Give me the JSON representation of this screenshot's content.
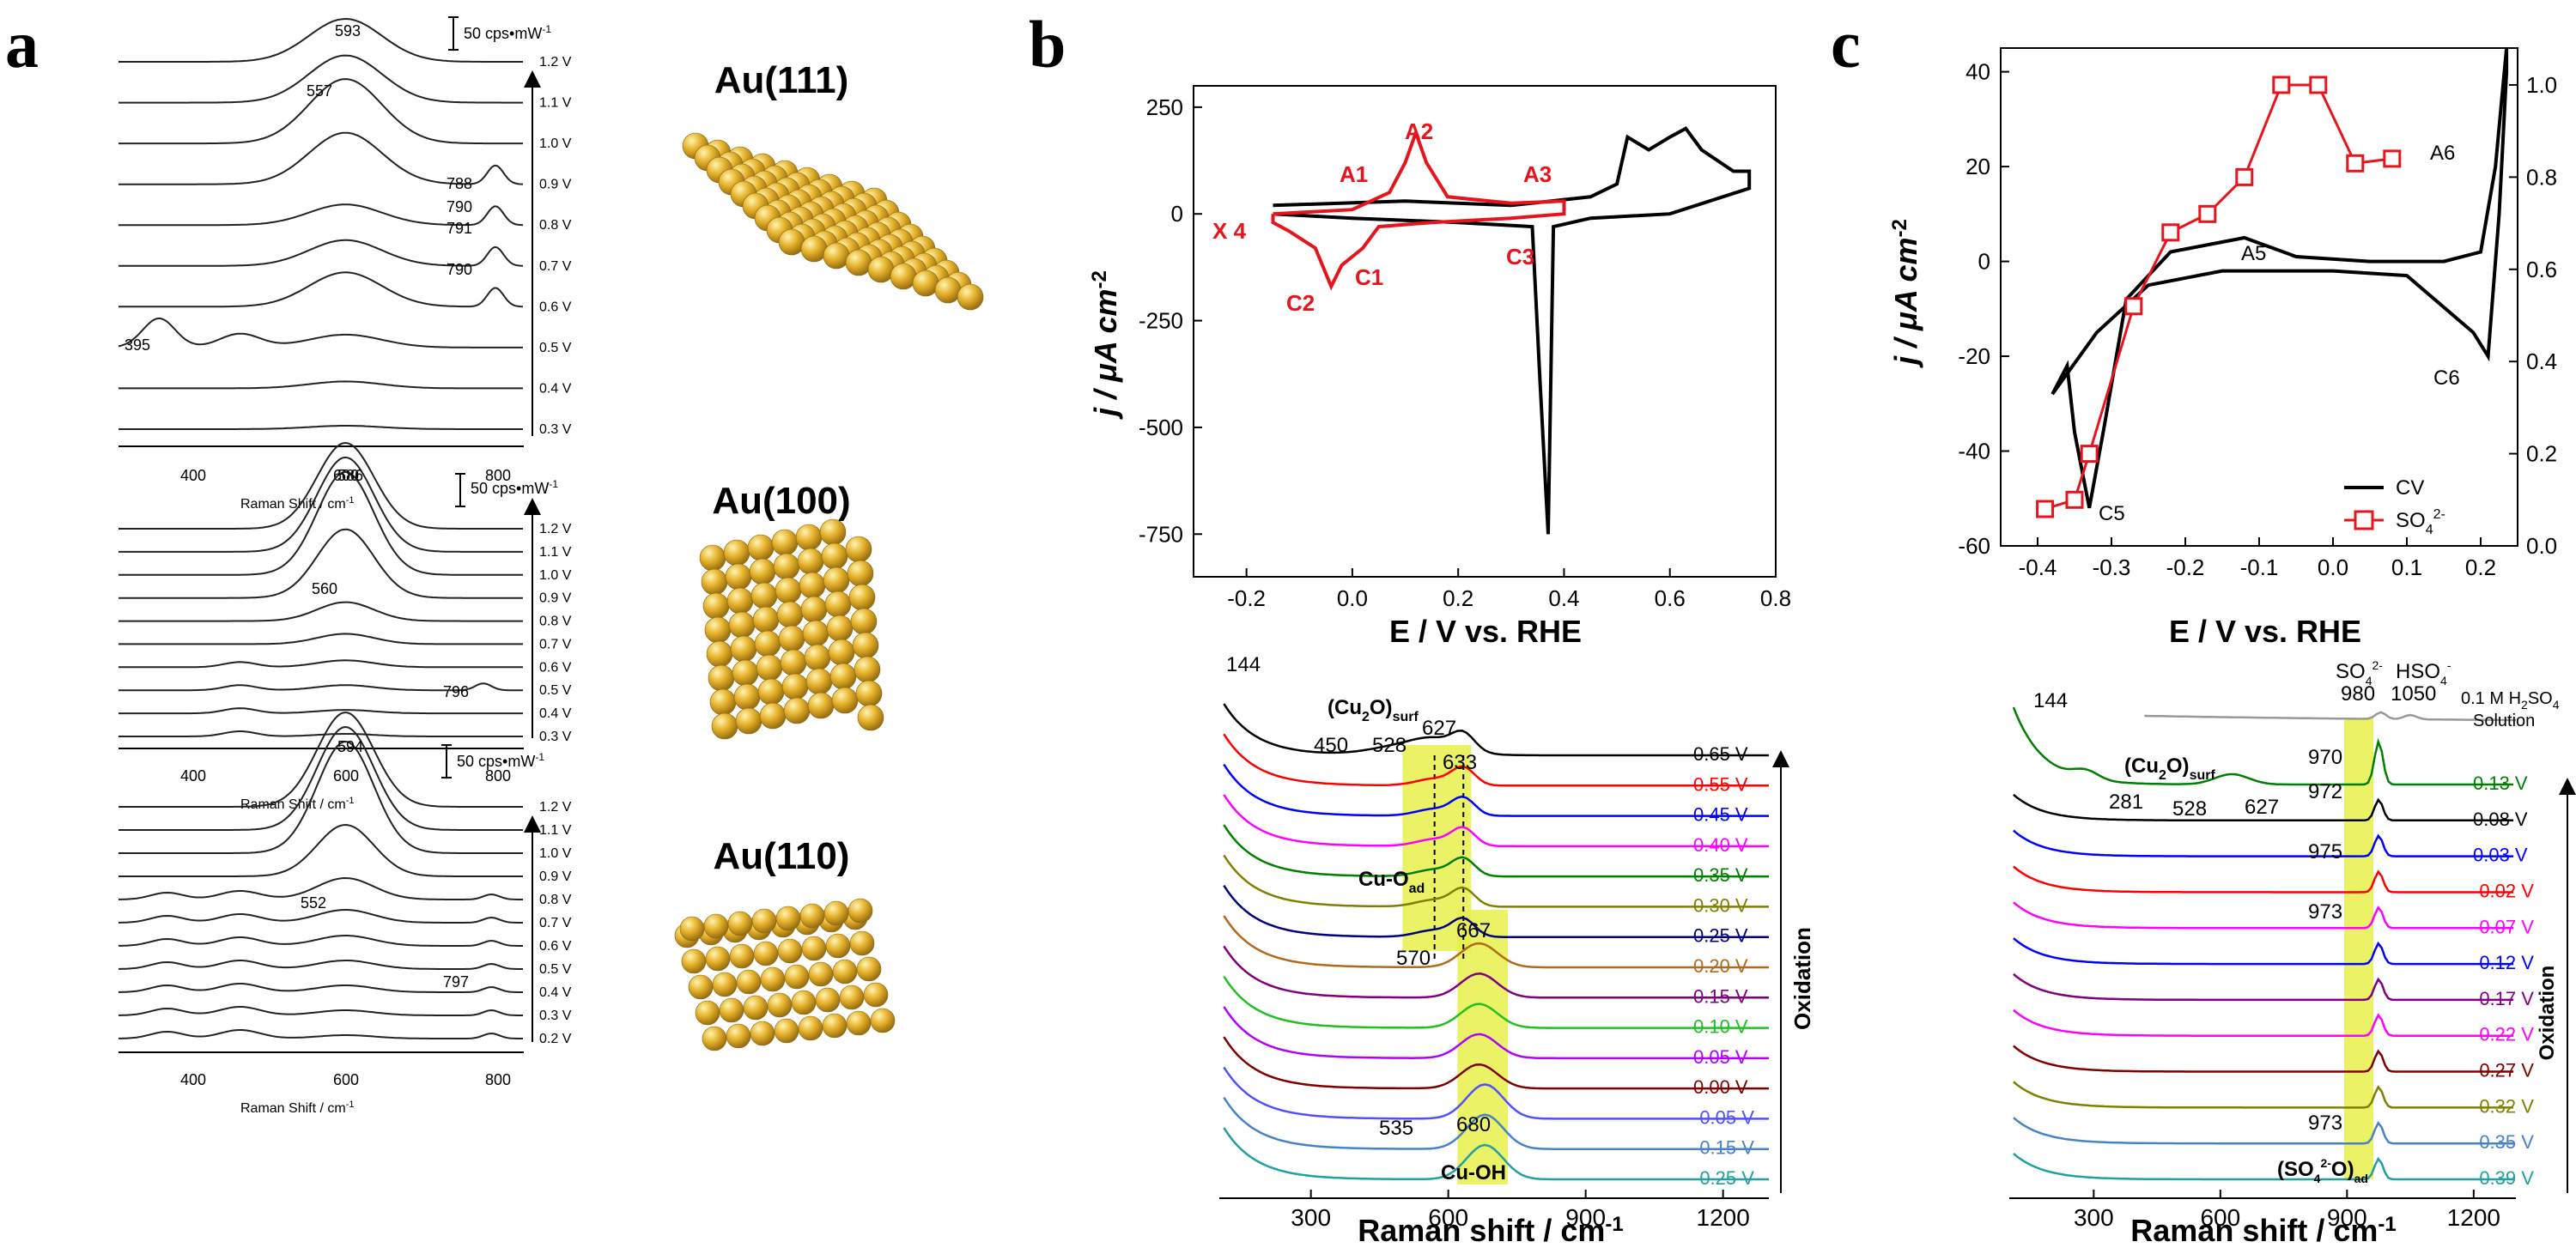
{
  "panels": {
    "a": {
      "letter": "a",
      "subplots": [
        {
          "facet": "Au(111)",
          "voltages": [
            "1.2 V",
            "1.1 V",
            "1.0 V",
            "0.9 V",
            "0.8 V",
            "0.7 V",
            "0.6 V",
            "0.5 V",
            "0.4 V",
            "0.3 V"
          ],
          "peaks": [
            "593",
            "557",
            "788",
            "790",
            "791",
            "790",
            "395"
          ],
          "scale": "50 cps•mW",
          "scale_sup": "-1",
          "xlabel": "Raman Shift / cm",
          "xlabel_sup": "-1",
          "xticks": [
            "400",
            "600",
            "800"
          ]
        },
        {
          "facet": "Au(100)",
          "voltages": [
            "1.2 V",
            "1.1 V",
            "1.0 V",
            "0.9 V",
            "0.8 V",
            "0.7 V",
            "0.6 V",
            "0.5 V",
            "0.4 V",
            "0.3 V"
          ],
          "peaks": [
            "586",
            "560",
            "796"
          ],
          "scale": "50 cps•mW",
          "scale_sup": "-1",
          "xlabel": "Raman Shift / cm",
          "xlabel_sup": "-1",
          "xticks": [
            "400",
            "600",
            "800"
          ]
        },
        {
          "facet": "Au(110)",
          "voltages": [
            "1.2 V",
            "1.1 V",
            "1.0 V",
            "0.9 V",
            "0.8 V",
            "0.7 V",
            "0.6 V",
            "0.5 V",
            "0.4 V",
            "0.3 V",
            "0.2 V"
          ],
          "peaks": [
            "594",
            "552",
            "797"
          ],
          "scale": "50 cps•mW",
          "scale_sup": "-1",
          "xlabel": "Raman Shift / cm",
          "xlabel_sup": "-1",
          "xticks": [
            "400",
            "600",
            "800"
          ]
        }
      ]
    },
    "b": {
      "letter": "b",
      "cv": {
        "ylabel": "j / μA cm",
        "ylabel_sup": "-2",
        "xlabel": "E / V vs. RHE",
        "yticks": [
          "250",
          "0",
          "-250",
          "-500",
          "-750"
        ],
        "xticks": [
          "-0.2",
          "0.0",
          "0.2",
          "0.4",
          "0.6",
          "0.8"
        ],
        "labels": [
          "A1",
          "A2",
          "A3",
          "X 4",
          "C1",
          "C2",
          "C3"
        ],
        "red_color": "#e8141c",
        "black_color": "#000000"
      },
      "raman": {
        "xlabel": "Raman shift / cm",
        "xlabel_sup": "-1",
        "xticks": [
          "300",
          "600",
          "900",
          "1200"
        ],
        "arrow_label": "Oxidation",
        "potentials": [
          "0.65 V",
          "0.55 V",
          "0.45 V",
          "0.40 V",
          "0.35 V",
          "0.30 V",
          "0.25 V",
          "0.20 V",
          "0.15 V",
          "0.10 V",
          "0.05 V",
          "0.00 V",
          "-0.05 V",
          "-0.15 V",
          "-0.25 V"
        ],
        "colors": [
          "#000000",
          "#ff0000",
          "#0000ff",
          "#ff00ff",
          "#008000",
          "#808000",
          "#000080",
          "#b06a1a",
          "#800080",
          "#20c020",
          "#b000ff",
          "#800000",
          "#5050ff",
          "#4682c8",
          "#20a0a0"
        ],
        "peaks": [
          "144",
          "450",
          "528",
          "627",
          "633",
          "667",
          "570",
          "535",
          "680"
        ],
        "cu2o_label": "(Cu",
        "cu2o_sub": "2",
        "cu2o_end": "O)",
        "cu2o_surf": "surf",
        "cuo_label": "Cu-O",
        "cuo_sub": "ad",
        "cuoh_label": "Cu-OH"
      }
    },
    "c": {
      "letter": "c",
      "cv": {
        "ylabel": "j / μA cm",
        "ylabel_sup": "-2",
        "xlabel": "E / V vs. RHE",
        "yticks": [
          "40",
          "20",
          "0",
          "-20",
          "-40",
          "-60"
        ],
        "y2ticks": [
          "1.0",
          "0.8",
          "0.6",
          "0.4",
          "0.2",
          "0.0"
        ],
        "xticks": [
          "-0.4",
          "-0.3",
          "-0.2",
          "-0.1",
          "0.0",
          "0.1",
          "0.2"
        ],
        "labels": [
          "A5",
          "A6",
          "C5",
          "C6"
        ],
        "legend_cv": "CV",
        "legend_so4": "SO",
        "legend_so4_sub": "4",
        "legend_so4_sup": "2-"
      },
      "raman": {
        "xlabel": "Raman shift / cm",
        "xlabel_sup": "-1",
        "xticks": [
          "300",
          "600",
          "900",
          "1200"
        ],
        "arrow_label": "Oxidation",
        "potentials": [
          "0.13 V",
          "0.08 V",
          "0.03 V",
          "-0.02 V",
          "-0.07 V",
          "-0.12 V",
          "-0.17 V",
          "-0.22 V",
          "-0.27 V",
          "-0.32 V",
          "-0.35 V",
          "-0.39 V"
        ],
        "colors": [
          "#008000",
          "#000000",
          "#0000ff",
          "#ff0000",
          "#ff00ff",
          "#0000ff",
          "#800080",
          "#ff00ff",
          "#800000",
          "#808000",
          "#4682c8",
          "#20a0a0"
        ],
        "solution": "0.1 M H",
        "solution_sub": "2",
        "solution_end": "SO",
        "solution_sub2": "4",
        "solution_label": "Solution",
        "peaks": [
          "144",
          "281",
          "528",
          "627",
          "980",
          "1050",
          "970",
          "972",
          "975",
          "973",
          "973"
        ],
        "so4_label": "SO",
        "hso4_label": "HSO",
        "so4ad_label": "(SO",
        "so4ad_mid": "4",
        "so4ad_sup": "2-",
        "so4ad_sub": "ad",
        "cu2o_label": "(Cu",
        "cu2o_sub": "2",
        "cu2o_end": "O)",
        "cu2o_surf": "surf"
      }
    }
  }
}
